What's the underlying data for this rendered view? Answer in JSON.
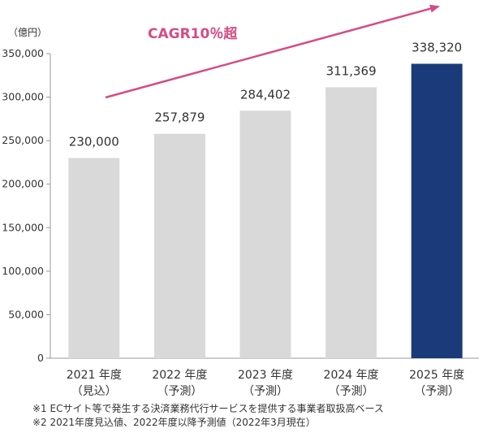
{
  "chart_data": {
    "type": "bar",
    "unit_label": "（億円）",
    "categories": [
      {
        "year": "2021 年度",
        "note": "（見込）"
      },
      {
        "year": "2022 年度",
        "note": "（予測）"
      },
      {
        "year": "2023 年度",
        "note": "（予測）"
      },
      {
        "year": "2024 年度",
        "note": "（予測）"
      },
      {
        "year": "2025 年度",
        "note": "（予測）"
      }
    ],
    "values": [
      230000,
      257879,
      284402,
      311369,
      338320
    ],
    "value_labels": [
      "230,000",
      "257,879",
      "284,402",
      "311,369",
      "338,320"
    ],
    "ylim": [
      0,
      350000
    ],
    "yticks": [
      0,
      50000,
      100000,
      150000,
      200000,
      250000,
      300000,
      350000
    ],
    "ytick_labels": [
      "0",
      "50,000",
      "100,000",
      "150,000",
      "200,000",
      "250,000",
      "300,000",
      "350,000"
    ],
    "annotation": "CAGR10％超",
    "colors": {
      "bar": "#d9d9d9",
      "highlight_bar": "#1a3a7a",
      "arrow": "#d44c86",
      "axis": "#999999"
    },
    "highlight_index": 4
  },
  "notes": [
    "※1 ECサイト等で発生する決済業務代行サービスを提供する事業者取扱高ベース",
    "※2 2021年度見込値、2022年度以降予測値（2022年3月現在）"
  ]
}
